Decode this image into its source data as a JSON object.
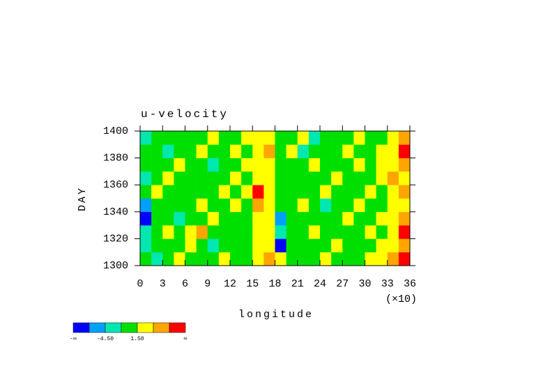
{
  "chart_data": {
    "type": "contourf",
    "title": "u-velocity",
    "xlabel": "longitude",
    "ylabel": "DAY",
    "x_multiplier": "(×10)",
    "xlim": [
      0,
      36
    ],
    "xticks": [
      0,
      3,
      6,
      9,
      12,
      15,
      18,
      21,
      24,
      27,
      30,
      33,
      36
    ],
    "ylim": [
      1300,
      1400
    ],
    "yticks": [
      1300,
      1320,
      1340,
      1360,
      1380,
      1400
    ],
    "x": [
      0.75,
      2.25,
      3.75,
      5.25,
      6.75,
      8.25,
      9.75,
      11.25,
      12.75,
      14.25,
      15.75,
      17.25,
      18.75,
      20.25,
      21.75,
      23.25,
      24.75,
      26.25,
      27.75,
      29.25,
      30.75,
      32.25,
      33.75,
      35.25
    ],
    "y": [
      1305,
      1315,
      1325,
      1335,
      1345,
      1355,
      1365,
      1375,
      1385,
      1395
    ],
    "z": [
      [
        0,
        -2,
        1,
        2,
        0,
        -1,
        0,
        2,
        1,
        0,
        3,
        5,
        2,
        -1,
        0,
        1,
        2,
        0,
        1,
        0,
        2,
        3,
        5,
        8
      ],
      [
        -3,
        -1,
        0,
        1,
        2,
        0,
        -2,
        1,
        0,
        1,
        4,
        3,
        -8,
        0,
        1,
        0,
        -1,
        2,
        0,
        1,
        0,
        2,
        4,
        5
      ],
      [
        -2,
        0,
        2,
        1,
        3,
        5,
        0,
        -1,
        1,
        0,
        3,
        2,
        -2,
        1,
        0,
        2,
        1,
        0,
        -1,
        1,
        2,
        1,
        3,
        8
      ],
      [
        -8,
        -1,
        0,
        -2,
        0,
        1,
        2,
        0,
        -1,
        1,
        2,
        4,
        -5,
        0,
        1,
        -1,
        0,
        1,
        2,
        0,
        1,
        3,
        2,
        5
      ],
      [
        -5,
        0,
        1,
        0,
        -1,
        2,
        0,
        1,
        3,
        0,
        5,
        2,
        -1,
        0,
        2,
        1,
        -2,
        0,
        1,
        2,
        0,
        1,
        4,
        3
      ],
      [
        0,
        2,
        1,
        -1,
        0,
        1,
        0,
        2,
        1,
        3,
        8,
        3,
        0,
        -1,
        1,
        0,
        2,
        1,
        0,
        -1,
        2,
        0,
        3,
        5
      ],
      [
        -2,
        0,
        2,
        1,
        0,
        -1,
        1,
        0,
        2,
        1,
        3,
        2,
        0,
        1,
        -1,
        0,
        1,
        3,
        0,
        1,
        0,
        2,
        5,
        4
      ],
      [
        0,
        -1,
        0,
        2,
        1,
        0,
        -2,
        1,
        0,
        2,
        4,
        3,
        1,
        0,
        -1,
        2,
        0,
        1,
        -1,
        2,
        1,
        3,
        2,
        5
      ],
      [
        1,
        0,
        -2,
        0,
        1,
        3,
        0,
        -1,
        2,
        1,
        3,
        5,
        0,
        2,
        -2,
        0,
        1,
        0,
        2,
        0,
        1,
        2,
        4,
        8
      ],
      [
        -3,
        1,
        0,
        1,
        -1,
        0,
        2,
        0,
        1,
        2,
        4,
        3,
        -1,
        0,
        2,
        -4,
        0,
        1,
        0,
        3,
        1,
        0,
        3,
        5
      ]
    ],
    "colorbar": {
      "colors": [
        "#0000ff",
        "#00a0ff",
        "#00e8b0",
        "#00e000",
        "#ffff00",
        "#ffa500",
        "#ff0000"
      ],
      "levels": [
        -7.5,
        -4.5,
        -1.5,
        1.5,
        4.5,
        7.5
      ],
      "labels": [
        {
          "value": -4.5,
          "label": "-4.50"
        },
        {
          "value": 1.5,
          "label": "1.50"
        }
      ],
      "min_label": "-∞",
      "max_label": "∞"
    }
  }
}
